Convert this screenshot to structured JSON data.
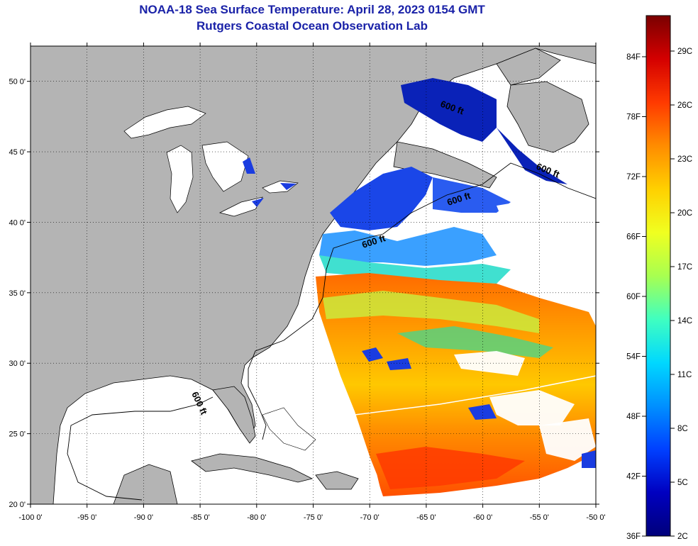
{
  "header": {
    "title": "NOAA-18 Sea Surface Temperature:  April 28, 2023 0154 GMT",
    "subtitle": "Rutgers Coastal Ocean Observation Lab"
  },
  "map": {
    "lon_range": [
      -100,
      -50
    ],
    "lat_range": [
      20,
      52.5
    ],
    "lon_ticks": [
      {
        "value": -100,
        "label": "-100 0'"
      },
      {
        "value": -95,
        "label": "-95 0'"
      },
      {
        "value": -90,
        "label": "-90 0'"
      },
      {
        "value": -85,
        "label": "-85 0'"
      },
      {
        "value": -80,
        "label": "-80 0'"
      },
      {
        "value": -75,
        "label": "-75 0'"
      },
      {
        "value": -70,
        "label": "-70 0'"
      },
      {
        "value": -65,
        "label": "-65 0'"
      },
      {
        "value": -60,
        "label": "-60 0'"
      },
      {
        "value": -55,
        "label": "-55 0'"
      },
      {
        "value": -50,
        "label": "-50 0'"
      }
    ],
    "lat_ticks": [
      {
        "value": 50,
        "label": "50 0'"
      },
      {
        "value": 45,
        "label": "45 0'"
      },
      {
        "value": 40,
        "label": "40 0'"
      },
      {
        "value": 35,
        "label": "35 0'"
      },
      {
        "value": 30,
        "label": "30 0'"
      },
      {
        "value": 25,
        "label": "25 0'"
      },
      {
        "value": 20,
        "label": "20 0'"
      }
    ],
    "depth_contour_label": "600 ft",
    "grid": "dotted",
    "land_color": "#b4b4b4",
    "cloud_color": "#ffffff"
  },
  "colorbar": {
    "fahrenheit_labels": [
      "84F",
      "78F",
      "72F",
      "66F",
      "60F",
      "54F",
      "48F",
      "42F",
      "36F"
    ],
    "celsius_labels": [
      "29C",
      "26C",
      "23C",
      "20C",
      "17C",
      "14C",
      "11C",
      "8C",
      "5C",
      "2C"
    ],
    "scale": [
      "#7a0000",
      "#d40000",
      "#ff3a00",
      "#ff8c00",
      "#ffd000",
      "#f0ff20",
      "#a8ff50",
      "#40ffc0",
      "#00d8ff",
      "#0090ff",
      "#0040ff",
      "#0000c0",
      "#00007a"
    ]
  }
}
